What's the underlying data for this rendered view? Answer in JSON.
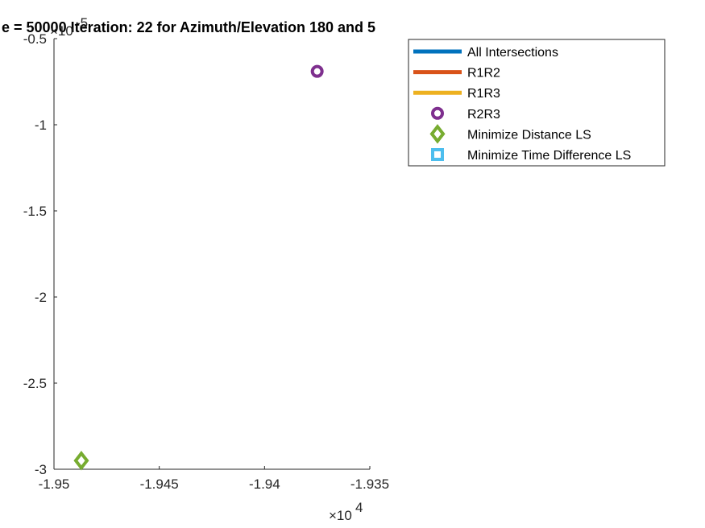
{
  "chart_data": {
    "type": "scatter",
    "title": "e = 50000 Iteration: 22 for Azimuth/Elevation 180 and 5",
    "xlabel": "",
    "ylabel": "",
    "x_multiplier": "×10",
    "x_exponent": "4",
    "y_multiplier": "×10",
    "y_exponent": "-5",
    "xlim": [
      -1.95,
      -1.935
    ],
    "ylim": [
      -3,
      -0.5
    ],
    "x_ticks": [
      -1.95,
      -1.945,
      -1.94,
      -1.935
    ],
    "x_tick_labels": [
      "-1.95",
      "-1.945",
      "-1.94",
      "-1.935"
    ],
    "y_ticks": [
      -3,
      -2.5,
      -2,
      -1.5,
      -1,
      -0.5
    ],
    "y_tick_labels": [
      "-3",
      "-2.5",
      "-2",
      "-1.5",
      "-1",
      "-0.5"
    ],
    "legend_position": "top-right",
    "grid": false,
    "series": [
      {
        "name": "All Intersections",
        "marker": "line",
        "color": "#0072BD",
        "points": []
      },
      {
        "name": "R1R2",
        "marker": "line",
        "color": "#D95319",
        "points": []
      },
      {
        "name": "R1R3",
        "marker": "line",
        "color": "#EDB120",
        "points": []
      },
      {
        "name": "R2R3",
        "marker": "circle",
        "color": "#7E2F8E",
        "points": [
          [
            -1.9375,
            -0.69
          ]
        ]
      },
      {
        "name": "Minimize Distance LS",
        "marker": "diamond",
        "color": "#77AC30",
        "points": [
          [
            -1.9487,
            -2.95
          ]
        ]
      },
      {
        "name": "Minimize Time Difference LS",
        "marker": "square",
        "color": "#4DBEEE",
        "points": []
      }
    ]
  }
}
